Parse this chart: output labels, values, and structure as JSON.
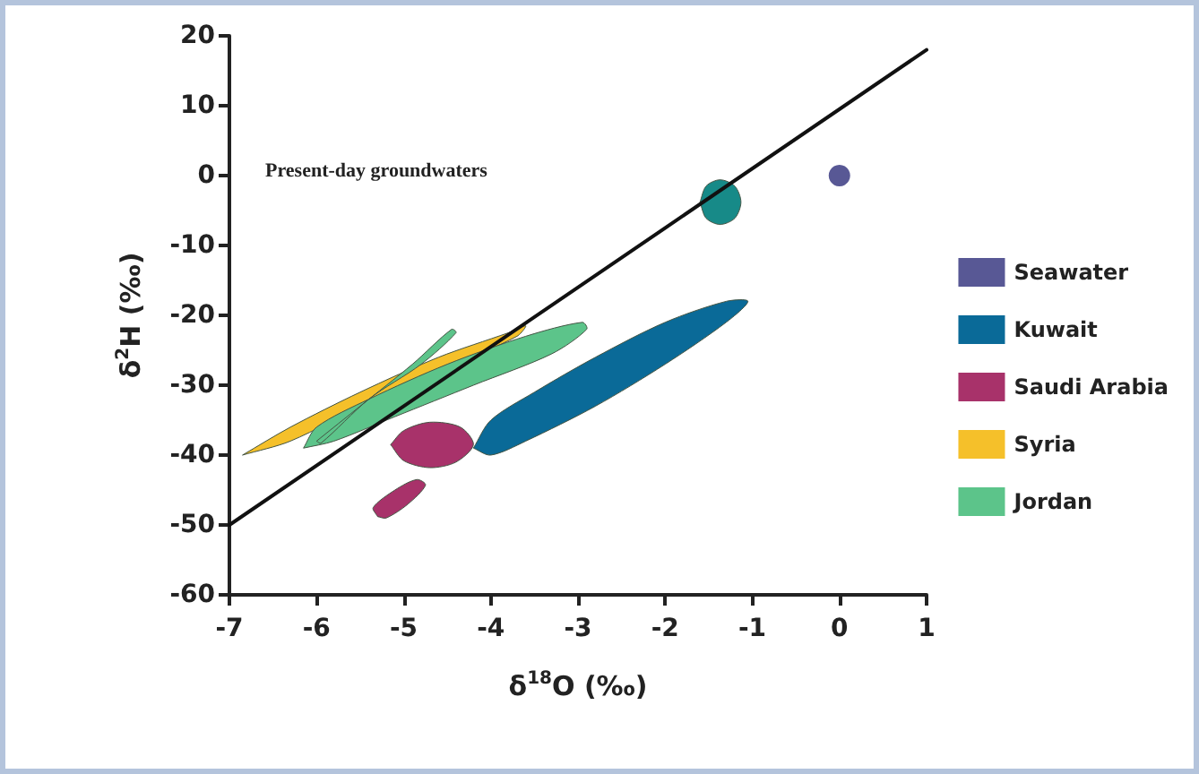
{
  "chart_data": {
    "type": "area",
    "xlabel": "δ$^{18}$O (‰)",
    "ylabel": "δ$^{2}$H (‰)",
    "xlim": [
      -7,
      1
    ],
    "xticks": [
      -7,
      -6,
      -5,
      -4,
      -3,
      -2,
      -1,
      0,
      1
    ],
    "ylim": [
      -60,
      20
    ],
    "yticks": [
      -60,
      -50,
      -40,
      -30,
      -20,
      -10,
      0,
      10,
      20
    ],
    "grid": false,
    "legend": "right",
    "marker": "none",
    "annotations": [
      "Present-day groundwaters"
    ],
    "series": [
      {
        "name": "Seawater",
        "type": "scatter",
        "marker": "circle",
        "color": "#2e2e7a",
        "x": [
          0
        ],
        "values": [
          0
        ]
      },
      {
        "name": "Kuwait",
        "color": "#0a6a98",
        "x": [
          -4.2,
          -4.0,
          -3.5,
          -2.8,
          -2.0,
          -1.3,
          -1.05,
          -1.3,
          -2.0,
          -2.8,
          -3.6,
          -4.0,
          -4.2
        ],
        "values": [
          -39,
          -35,
          -31,
          -26,
          -21,
          -18,
          -18,
          -21,
          -27,
          -33,
          -38,
          -40,
          -39
        ]
      },
      {
        "name": "Saudi Arabia",
        "color": "#a8326a",
        "x": [
          -5.15,
          -5.0,
          -4.7,
          -4.35,
          -4.2,
          -4.4,
          -4.7,
          -5.0,
          -5.15,
          null,
          -5.3,
          -5.35,
          -5.1,
          -4.85,
          -4.75,
          -4.95,
          -5.2,
          -5.3
        ],
        "values": [
          -38.5,
          -36.5,
          -35.3,
          -36,
          -38.5,
          -41,
          -41.8,
          -40.8,
          -38.5,
          null,
          -48.8,
          -47.5,
          -45,
          -43.5,
          -44.3,
          -47,
          -49,
          -48.8
        ]
      },
      {
        "name": "Syria",
        "color": "#f5c02a",
        "x": [
          -6.85,
          -6.3,
          -5.5,
          -4.6,
          -3.8,
          -3.6,
          -3.7,
          -4.5,
          -5.4,
          -6.3,
          -6.85
        ],
        "values": [
          -40,
          -36,
          -31,
          -26,
          -22.5,
          -21.5,
          -23,
          -27.5,
          -32.5,
          -38,
          -40
        ]
      },
      {
        "name": "Jordan",
        "color": "#5cc48a",
        "x": [
          -6.15,
          -6.0,
          -5.4,
          -4.5,
          -3.6,
          -2.95,
          -2.9,
          -3.3,
          -4.2,
          -5.1,
          -5.8,
          -6.15,
          null,
          -6.0,
          -5.5,
          -4.9,
          -4.45,
          -4.4,
          -4.8,
          -5.4,
          -5.95,
          -6.0
        ],
        "values": [
          -39,
          -36,
          -32,
          -27,
          -23,
          -21,
          -22,
          -25.5,
          -30,
          -34.5,
          -38,
          -39,
          null,
          -38,
          -33,
          -27,
          -22,
          -22.5,
          -27,
          -32,
          -38.3,
          -38
        ]
      },
      {
        "color": "#178a88",
        "x": [
          -1.6,
          -1.53,
          -1.37,
          -1.2,
          -1.13,
          -1.2,
          -1.37,
          -1.53,
          -1.6
        ],
        "values": [
          -3.8,
          -1.5,
          -0.6,
          -1.5,
          -3.8,
          -6.1,
          -7,
          -6.1,
          -3.8
        ]
      },
      {
        "type": "line",
        "color": "#111111",
        "x": [
          -7,
          1
        ],
        "values": [
          -50,
          18
        ]
      }
    ]
  }
}
